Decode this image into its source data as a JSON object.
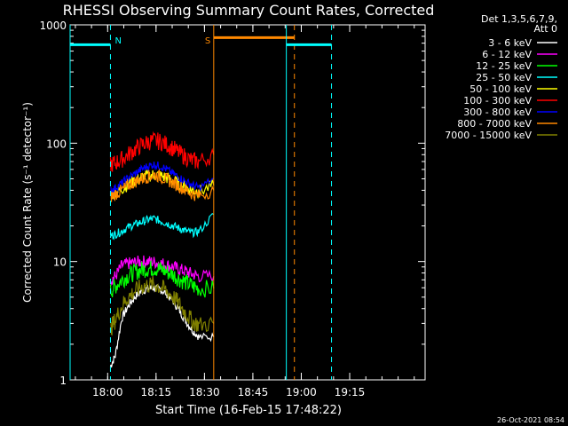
{
  "chart_data": {
    "type": "line",
    "title": "RHESSI Observing Summary Count Rates, Corrected",
    "xlabel": "Start Time (16-Feb-15 17:48:22)",
    "ylabel": "Corrected Count Rate (s⁻¹ detector⁻¹)",
    "yscale": "log",
    "ylim": [
      1,
      1000
    ],
    "xlim_minutes_after_start": [
      0,
      110
    ],
    "x_tick_labels": [
      "18:00",
      "18:15",
      "18:30",
      "18:45",
      "19:00",
      "19:15"
    ],
    "x_tick_minutes": [
      11.63,
      26.63,
      41.63,
      56.63,
      71.63,
      86.63
    ],
    "y_tick_labels": [
      "1",
      "10",
      "100",
      "1000"
    ],
    "y_tick_values": [
      1,
      10,
      100,
      1000
    ],
    "legend_header": [
      "Det 1,3,5,6,7,9,",
      "Att 0"
    ],
    "legend_placement": "right",
    "series": [
      {
        "name": "3 - 6 keV",
        "color": "#ffffff",
        "x": [
          12.5,
          14,
          16,
          18,
          20,
          22,
          24,
          26,
          28,
          30,
          32,
          34,
          36,
          38,
          40,
          44.5
        ],
        "values": [
          1.3,
          1.6,
          3.3,
          4.2,
          5.0,
          5.6,
          5.9,
          6.0,
          5.8,
          5.3,
          4.6,
          3.8,
          3.1,
          2.6,
          2.3,
          2.3
        ]
      },
      {
        "name": "6 - 12 keV",
        "color": "#ff00ff",
        "x": [
          12.5,
          14,
          16,
          18,
          20,
          22,
          24,
          26,
          28,
          30,
          32,
          34,
          36,
          38,
          40,
          44.5
        ],
        "values": [
          7.0,
          7.5,
          9.2,
          9.6,
          9.8,
          10.0,
          10.0,
          9.9,
          9.7,
          9.4,
          9.0,
          8.6,
          8.2,
          7.8,
          7.5,
          7.5
        ]
      },
      {
        "name": "12 - 25 keV",
        "color": "#00ff00",
        "x": [
          12.5,
          14,
          16,
          18,
          20,
          22,
          24,
          26,
          28,
          30,
          32,
          34,
          36,
          38,
          40,
          44.5
        ],
        "values": [
          5.6,
          6.2,
          7.0,
          7.6,
          8.1,
          8.5,
          8.7,
          8.8,
          8.6,
          8.2,
          7.7,
          7.1,
          6.6,
          6.2,
          5.9,
          5.9
        ]
      },
      {
        "name": "25 - 50 keV",
        "color": "#00ffff",
        "x": [
          12.5,
          14,
          16,
          18,
          20,
          22,
          24,
          26,
          28,
          30,
          32,
          34,
          36,
          38,
          40,
          44.5
        ],
        "values": [
          16.5,
          17.0,
          18.0,
          19.5,
          20.5,
          21.5,
          22.5,
          23.0,
          22.0,
          21.0,
          20.0,
          19.0,
          18.0,
          17.5,
          18.0,
          25
        ]
      },
      {
        "name": "50 - 100 keV",
        "color": "#ffff00",
        "x": [
          12.5,
          14,
          16,
          18,
          20,
          22,
          24,
          26,
          28,
          30,
          32,
          34,
          36,
          38,
          40,
          44.5
        ],
        "values": [
          37,
          38,
          41,
          45,
          48,
          51,
          53,
          54,
          53,
          51,
          48,
          45,
          42,
          40,
          39,
          44
        ]
      },
      {
        "name": "100 - 300 keV",
        "color": "#ff0000",
        "x": [
          12.5,
          14,
          16,
          18,
          20,
          22,
          24,
          26,
          28,
          30,
          32,
          34,
          36,
          38,
          40,
          44.5
        ],
        "values": [
          66,
          68,
          73,
          80,
          88,
          96,
          102,
          105,
          103,
          97,
          90,
          82,
          76,
          71,
          70,
          80
        ]
      },
      {
        "name": "300 - 800 keV",
        "color": "#0000ff",
        "x": [
          12.5,
          14,
          16,
          18,
          20,
          22,
          24,
          26,
          28,
          30,
          32,
          34,
          36,
          38,
          40,
          44.5
        ],
        "values": [
          40,
          42,
          46,
          51,
          55,
          60,
          64,
          66,
          64,
          60,
          55,
          51,
          47,
          44,
          42,
          50
        ]
      },
      {
        "name": "800 - 7000 keV",
        "color": "#ff8800",
        "x": [
          12.5,
          14,
          16,
          18,
          20,
          22,
          24,
          26,
          28,
          30,
          32,
          34,
          36,
          38,
          40,
          44.5
        ],
        "values": [
          35,
          37,
          40,
          44,
          47,
          50,
          52,
          54,
          52,
          49,
          46,
          43,
          40,
          37,
          36,
          40
        ]
      },
      {
        "name": "7000 - 15000 keV",
        "color": "#808000",
        "x": [
          12.5,
          14,
          16,
          18,
          20,
          22,
          24,
          26,
          28,
          30,
          32,
          34,
          36,
          38,
          40,
          44.5
        ],
        "values": [
          2.7,
          3.2,
          4.2,
          5.0,
          5.6,
          6.1,
          6.3,
          6.4,
          6.1,
          5.6,
          5.0,
          4.3,
          3.6,
          3.1,
          2.9,
          3.0
        ]
      }
    ],
    "markers": [
      {
        "label": "N",
        "color": "#00ffff",
        "segments": [
          {
            "x_start": 0,
            "x_end": 12.5,
            "y": 680
          }
        ],
        "solid_lines_x": [
          0
        ],
        "dashed_lines_x": [
          12.5
        ]
      },
      {
        "label": "S",
        "color": "#ff8800",
        "segments": [
          {
            "x_start": 44.5,
            "x_end": 69.5,
            "y": 780
          }
        ],
        "solid_lines_x": [
          44.5
        ],
        "dashed_lines_x": [
          69.5
        ]
      },
      {
        "label": "",
        "color": "#00ffff",
        "segments": [
          {
            "x_start": 67,
            "x_end": 81,
            "y": 680
          }
        ],
        "solid_lines_x": [
          67
        ],
        "dashed_lines_x": [
          81
        ]
      }
    ]
  },
  "footer_timestamp": "26-Oct-2021 08:54"
}
